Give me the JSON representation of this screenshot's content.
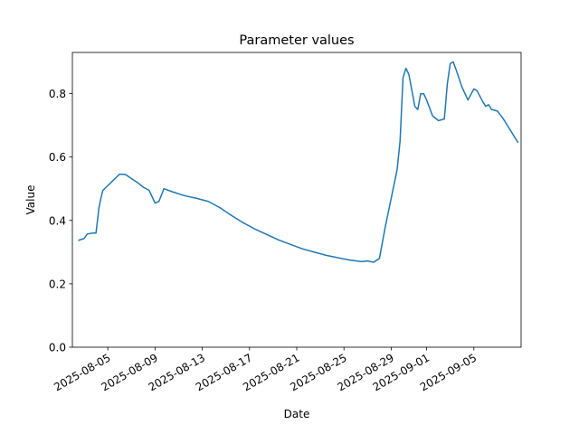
{
  "chart_data": {
    "type": "line",
    "title": "Parameter values",
    "xlabel": "Date",
    "ylabel": "Value",
    "xlim": [
      "2025-08-02",
      "2025-09-09"
    ],
    "ylim": [
      0,
      0.93
    ],
    "grid": false,
    "legend": "none",
    "x_ticks": [
      "2025-08-05",
      "2025-08-09",
      "2025-08-13",
      "2025-08-17",
      "2025-08-21",
      "2025-08-25",
      "2025-08-29",
      "2025-09-01",
      "2025-09-05"
    ],
    "y_ticks": [
      "0.0",
      "0.2",
      "0.4",
      "0.6",
      "0.8"
    ],
    "y_tick_values": [
      0.0,
      0.2,
      0.4,
      0.6,
      0.8
    ],
    "series": [
      {
        "color": "#1f77b4",
        "points": [
          [
            "2025-08-02T12:00",
            0.337
          ],
          [
            "2025-08-03T00:00",
            0.343
          ],
          [
            "2025-08-03T06:00",
            0.357
          ],
          [
            "2025-08-03T16:00",
            0.36
          ],
          [
            "2025-08-04T00:00",
            0.36
          ],
          [
            "2025-08-04T06:00",
            0.44
          ],
          [
            "2025-08-04T10:00",
            0.47
          ],
          [
            "2025-08-04T14:00",
            0.495
          ],
          [
            "2025-08-05T00:00",
            0.51
          ],
          [
            "2025-08-05T12:00",
            0.528
          ],
          [
            "2025-08-06T00:00",
            0.546
          ],
          [
            "2025-08-06T12:00",
            0.545
          ],
          [
            "2025-08-07T00:00",
            0.532
          ],
          [
            "2025-08-07T12:00",
            0.52
          ],
          [
            "2025-08-08T00:00",
            0.505
          ],
          [
            "2025-08-08T12:00",
            0.495
          ],
          [
            "2025-08-09T00:00",
            0.455
          ],
          [
            "2025-08-09T08:00",
            0.46
          ],
          [
            "2025-08-09T18:00",
            0.5
          ],
          [
            "2025-08-10T12:00",
            0.49
          ],
          [
            "2025-08-11T12:00",
            0.478
          ],
          [
            "2025-08-12T12:00",
            0.47
          ],
          [
            "2025-08-13T12:00",
            0.46
          ],
          [
            "2025-08-14T12:00",
            0.44
          ],
          [
            "2025-08-15T12:00",
            0.415
          ],
          [
            "2025-08-16T12:00",
            0.392
          ],
          [
            "2025-08-17T12:00",
            0.372
          ],
          [
            "2025-08-18T12:00",
            0.355
          ],
          [
            "2025-08-19T12:00",
            0.338
          ],
          [
            "2025-08-20T12:00",
            0.324
          ],
          [
            "2025-08-21T12:00",
            0.31
          ],
          [
            "2025-08-22T12:00",
            0.3
          ],
          [
            "2025-08-23T12:00",
            0.29
          ],
          [
            "2025-08-24T12:00",
            0.282
          ],
          [
            "2025-08-25T12:00",
            0.275
          ],
          [
            "2025-08-26T12:00",
            0.27
          ],
          [
            "2025-08-27T00:00",
            0.272
          ],
          [
            "2025-08-27T12:00",
            0.268
          ],
          [
            "2025-08-28T00:00",
            0.28
          ],
          [
            "2025-08-28T06:00",
            0.33
          ],
          [
            "2025-08-28T12:00",
            0.38
          ],
          [
            "2025-08-29T00:00",
            0.47
          ],
          [
            "2025-08-29T12:00",
            0.56
          ],
          [
            "2025-08-29T18:00",
            0.65
          ],
          [
            "2025-08-30T00:00",
            0.85
          ],
          [
            "2025-08-30T06:00",
            0.88
          ],
          [
            "2025-08-30T12:00",
            0.86
          ],
          [
            "2025-08-31T00:00",
            0.76
          ],
          [
            "2025-08-31T06:00",
            0.75
          ],
          [
            "2025-08-31T12:00",
            0.8
          ],
          [
            "2025-08-31T18:00",
            0.8
          ],
          [
            "2025-09-01T00:00",
            0.78
          ],
          [
            "2025-09-01T12:00",
            0.73
          ],
          [
            "2025-09-02T00:00",
            0.715
          ],
          [
            "2025-09-02T12:00",
            0.72
          ],
          [
            "2025-09-02T18:00",
            0.83
          ],
          [
            "2025-09-03T00:00",
            0.895
          ],
          [
            "2025-09-03T06:00",
            0.9
          ],
          [
            "2025-09-03T12:00",
            0.875
          ],
          [
            "2025-09-04T00:00",
            0.82
          ],
          [
            "2025-09-04T12:00",
            0.78
          ],
          [
            "2025-09-05T00:00",
            0.815
          ],
          [
            "2025-09-05T06:00",
            0.81
          ],
          [
            "2025-09-05T18:00",
            0.775
          ],
          [
            "2025-09-06T00:00",
            0.76
          ],
          [
            "2025-09-06T06:00",
            0.765
          ],
          [
            "2025-09-06T12:00",
            0.75
          ],
          [
            "2025-09-07T00:00",
            0.745
          ],
          [
            "2025-09-07T12:00",
            0.72
          ],
          [
            "2025-09-08T00:00",
            0.69
          ],
          [
            "2025-09-08T12:00",
            0.66
          ],
          [
            "2025-09-08T18:00",
            0.645
          ]
        ]
      }
    ]
  }
}
